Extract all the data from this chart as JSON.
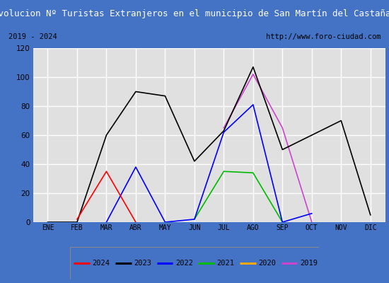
{
  "title": "Evolucion Nº Turistas Extranjeros en el municipio de San Martín del Castañar",
  "subtitle_left": "2019 - 2024",
  "subtitle_right": "http://www.foro-ciudad.com",
  "months": [
    "ENE",
    "FEB",
    "MAR",
    "ABR",
    "MAY",
    "JUN",
    "JUL",
    "AGO",
    "SEP",
    "OCT",
    "NOV",
    "DIC"
  ],
  "ylim": [
    0,
    120
  ],
  "yticks": [
    0,
    20,
    40,
    60,
    80,
    100,
    120
  ],
  "series": {
    "2024": {
      "color": "#ff0000",
      "data": [
        null,
        2,
        35,
        0,
        null,
        null,
        null,
        null,
        null,
        null,
        null,
        null
      ]
    },
    "2023": {
      "color": "#000000",
      "data": [
        0,
        0,
        60,
        90,
        87,
        42,
        63,
        107,
        50,
        60,
        70,
        5
      ]
    },
    "2022": {
      "color": "#0000ff",
      "data": [
        null,
        null,
        0,
        38,
        0,
        2,
        62,
        81,
        0,
        6,
        null,
        null
      ]
    },
    "2021": {
      "color": "#00bb00",
      "data": [
        null,
        null,
        null,
        null,
        null,
        2,
        35,
        34,
        0,
        null,
        null,
        null
      ]
    },
    "2020": {
      "color": "#ffaa00",
      "data": [
        null,
        null,
        null,
        null,
        null,
        null,
        null,
        null,
        null,
        null,
        null,
        null
      ]
    },
    "2019": {
      "color": "#cc44cc",
      "data": [
        null,
        null,
        null,
        null,
        null,
        null,
        65,
        102,
        65,
        0,
        null,
        null
      ]
    }
  },
  "title_bg_color": "#4472c4",
  "title_font_color": "#ffffff",
  "plot_bg_color": "#e0e0e0",
  "grid_color": "#ffffff",
  "outer_border_color": "#4472c4",
  "inner_bg_color": "#ffffff",
  "legend_order": [
    "2024",
    "2023",
    "2022",
    "2021",
    "2020",
    "2019"
  ]
}
